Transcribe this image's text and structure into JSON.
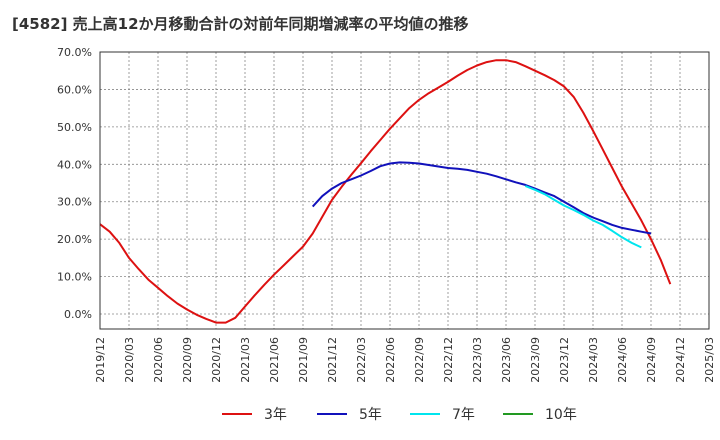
{
  "chart_data": {
    "type": "line",
    "title": "[4582]  売上高12か月移動合計の対前年同期増減率の平均値の推移",
    "xlabel": "",
    "ylabel": "",
    "x_ticks": [
      "2019/12",
      "2020/03",
      "2020/06",
      "2020/09",
      "2020/12",
      "2021/03",
      "2021/06",
      "2021/09",
      "2021/12",
      "2022/03",
      "2022/06",
      "2022/09",
      "2022/12",
      "2023/03",
      "2023/06",
      "2023/09",
      "2023/12",
      "2024/03",
      "2024/06",
      "2024/09",
      "2024/12",
      "2025/03"
    ],
    "y_ticks": [
      "0.0%",
      "10.0%",
      "20.0%",
      "30.0%",
      "40.0%",
      "50.0%",
      "60.0%",
      "70.0%"
    ],
    "ylim": [
      -4,
      70
    ],
    "grid": true,
    "legend_position": "bottom",
    "series": [
      {
        "name": "3年",
        "color": "#dd1111",
        "points": [
          [
            "2019/12",
            24.0
          ],
          [
            "2020/01",
            22.0
          ],
          [
            "2020/02",
            19.0
          ],
          [
            "2020/03",
            15.0
          ],
          [
            "2020/04",
            12.0
          ],
          [
            "2020/05",
            9.2
          ],
          [
            "2020/06",
            7.0
          ],
          [
            "2020/07",
            4.8
          ],
          [
            "2020/08",
            2.8
          ],
          [
            "2020/09",
            1.2
          ],
          [
            "2020/10",
            -0.2
          ],
          [
            "2020/11",
            -1.3
          ],
          [
            "2020/12",
            -2.3
          ],
          [
            "2021/01",
            -2.3
          ],
          [
            "2021/02",
            -1.0
          ],
          [
            "2021/03",
            2.0
          ],
          [
            "2021/04",
            5.0
          ],
          [
            "2021/05",
            7.8
          ],
          [
            "2021/06",
            10.5
          ],
          [
            "2021/07",
            13.0
          ],
          [
            "2021/08",
            15.5
          ],
          [
            "2021/09",
            18.0
          ],
          [
            "2021/10",
            21.5
          ],
          [
            "2021/11",
            26.0
          ],
          [
            "2021/12",
            30.5
          ],
          [
            "2022/01",
            34.0
          ],
          [
            "2022/02",
            37.2
          ],
          [
            "2022/03",
            40.3
          ],
          [
            "2022/04",
            43.5
          ],
          [
            "2022/05",
            46.5
          ],
          [
            "2022/06",
            49.5
          ],
          [
            "2022/07",
            52.3
          ],
          [
            "2022/08",
            55.0
          ],
          [
            "2022/09",
            57.2
          ],
          [
            "2022/10",
            59.0
          ],
          [
            "2022/11",
            60.5
          ],
          [
            "2022/12",
            62.0
          ],
          [
            "2023/01",
            63.7
          ],
          [
            "2023/02",
            65.2
          ],
          [
            "2023/03",
            66.4
          ],
          [
            "2023/04",
            67.3
          ],
          [
            "2023/05",
            67.8
          ],
          [
            "2023/06",
            67.8
          ],
          [
            "2023/07",
            67.3
          ],
          [
            "2023/08",
            66.2
          ],
          [
            "2023/09",
            65.0
          ],
          [
            "2023/10",
            63.8
          ],
          [
            "2023/11",
            62.5
          ],
          [
            "2023/12",
            60.8
          ],
          [
            "2024/01",
            58.0
          ],
          [
            "2024/02",
            53.8
          ],
          [
            "2024/03",
            49.0
          ],
          [
            "2024/04",
            44.0
          ],
          [
            "2024/05",
            39.0
          ],
          [
            "2024/06",
            34.0
          ],
          [
            "2024/07",
            29.5
          ],
          [
            "2024/08",
            25.0
          ],
          [
            "2024/09",
            20.0
          ],
          [
            "2024/10",
            14.5
          ],
          [
            "2024/11",
            8.0
          ]
        ]
      },
      {
        "name": "5年",
        "color": "#1111bb",
        "points": [
          [
            "2021/10",
            28.7
          ],
          [
            "2021/11",
            31.5
          ],
          [
            "2021/12",
            33.5
          ],
          [
            "2022/01",
            35.0
          ],
          [
            "2022/02",
            36.0
          ],
          [
            "2022/03",
            37.0
          ],
          [
            "2022/04",
            38.2
          ],
          [
            "2022/05",
            39.5
          ],
          [
            "2022/06",
            40.2
          ],
          [
            "2022/07",
            40.5
          ],
          [
            "2022/08",
            40.4
          ],
          [
            "2022/09",
            40.2
          ],
          [
            "2022/10",
            39.8
          ],
          [
            "2022/11",
            39.4
          ],
          [
            "2022/12",
            39.0
          ],
          [
            "2023/01",
            38.8
          ],
          [
            "2023/02",
            38.5
          ],
          [
            "2023/03",
            38.0
          ],
          [
            "2023/04",
            37.5
          ],
          [
            "2023/05",
            36.8
          ],
          [
            "2023/06",
            36.0
          ],
          [
            "2023/07",
            35.2
          ],
          [
            "2023/08",
            34.5
          ],
          [
            "2023/09",
            33.5
          ],
          [
            "2023/10",
            32.5
          ],
          [
            "2023/11",
            31.5
          ],
          [
            "2023/12",
            30.0
          ],
          [
            "2024/01",
            28.5
          ],
          [
            "2024/02",
            27.0
          ],
          [
            "2024/03",
            25.8
          ],
          [
            "2024/04",
            24.8
          ],
          [
            "2024/05",
            23.8
          ],
          [
            "2024/06",
            23.0
          ],
          [
            "2024/07",
            22.5
          ],
          [
            "2024/08",
            22.0
          ],
          [
            "2024/09",
            21.5
          ]
        ]
      },
      {
        "name": "7年",
        "color": "#00e5ee",
        "points": [
          [
            "2023/08",
            34.2
          ],
          [
            "2023/09",
            33.2
          ],
          [
            "2023/10",
            32.0
          ],
          [
            "2023/11",
            30.5
          ],
          [
            "2023/12",
            29.0
          ],
          [
            "2024/01",
            27.8
          ],
          [
            "2024/02",
            26.5
          ],
          [
            "2024/03",
            25.0
          ],
          [
            "2024/04",
            23.8
          ],
          [
            "2024/05",
            22.2
          ],
          [
            "2024/06",
            20.5
          ],
          [
            "2024/07",
            19.0
          ],
          [
            "2024/08",
            17.8
          ]
        ]
      },
      {
        "name": "10年",
        "color": "#229922",
        "points": []
      }
    ]
  }
}
